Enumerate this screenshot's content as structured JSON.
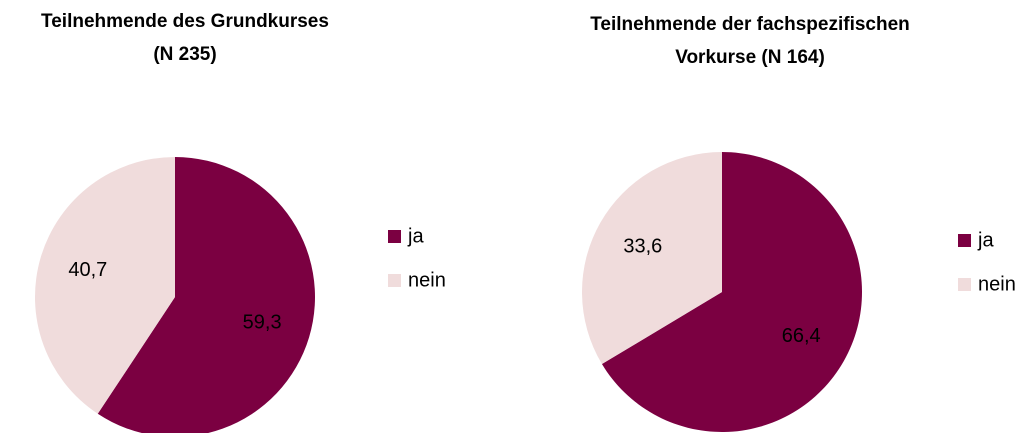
{
  "chart_data": [
    {
      "type": "pie",
      "title": [
        "Teilnehmende des Grundkurses",
        "(N 235)"
      ],
      "categories": [
        "ja",
        "nein"
      ],
      "values": [
        59.3,
        40.7
      ],
      "value_labels": [
        "59,3",
        "40,7"
      ],
      "colors": [
        "#7b0041",
        "#f0dcdc"
      ]
    },
    {
      "type": "pie",
      "title": [
        "Teilnehmende der fachspezifischen",
        "Vorkurse (N 164)"
      ],
      "categories": [
        "ja",
        "nein"
      ],
      "values": [
        66.4,
        33.6
      ],
      "value_labels": [
        "66,4",
        "33,6"
      ],
      "colors": [
        "#7b0041",
        "#f0dcdc"
      ]
    }
  ]
}
